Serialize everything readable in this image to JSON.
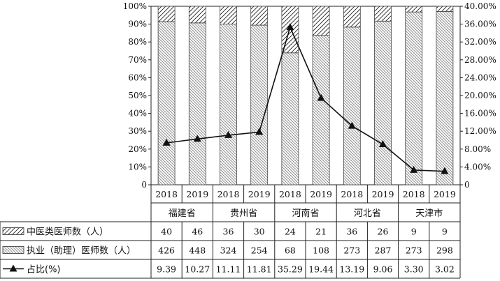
{
  "chart_data": {
    "type": "bar",
    "groups": [
      "福建省",
      "贵州省",
      "河南省",
      "河北省",
      "天津市"
    ],
    "years": [
      "2018",
      "2019",
      "2018",
      "2019",
      "2018",
      "2019",
      "2018",
      "2019",
      "2018",
      "2019"
    ],
    "left_axis": {
      "ylim": [
        0,
        100
      ],
      "ticks": [
        "0",
        "10%",
        "20%",
        "30%",
        "40%",
        "50%",
        "60%",
        "70%",
        "80%",
        "90%",
        "100%"
      ]
    },
    "right_axis": {
      "ylim": [
        0,
        40
      ],
      "ticks": [
        "0",
        "4.00%",
        "8.00%",
        "12.00%",
        "16.00%",
        "20.00%",
        "24.00%",
        "28.00%",
        "32.00%",
        "36.00%",
        "40.00%"
      ]
    },
    "series": [
      {
        "name": "中医类医师数（人）",
        "type": "stacked-bar",
        "values": [
          40,
          46,
          36,
          30,
          24,
          21,
          36,
          26,
          9,
          9
        ],
        "labels": [
          "40",
          "46",
          "36",
          "30",
          "24",
          "21",
          "36",
          "26",
          "9",
          "9"
        ]
      },
      {
        "name": "执业（助理）医师数（人）",
        "type": "stacked-bar",
        "values": [
          426,
          448,
          324,
          254,
          68,
          108,
          273,
          287,
          273,
          298
        ],
        "labels": [
          "426",
          "448",
          "324",
          "254",
          "68",
          "108",
          "273",
          "287",
          "273",
          "298"
        ]
      },
      {
        "name": "占比(%)",
        "type": "line",
        "values": [
          9.39,
          10.27,
          11.11,
          11.81,
          35.29,
          19.44,
          13.19,
          9.06,
          3.3,
          3.02
        ],
        "labels": [
          "9.39",
          "10.27",
          "11.11",
          "11.81",
          "35.29",
          "19.44",
          "13.19",
          "9.06",
          "3.30",
          "3.02"
        ]
      }
    ],
    "legend": "table-left",
    "grid": false
  }
}
